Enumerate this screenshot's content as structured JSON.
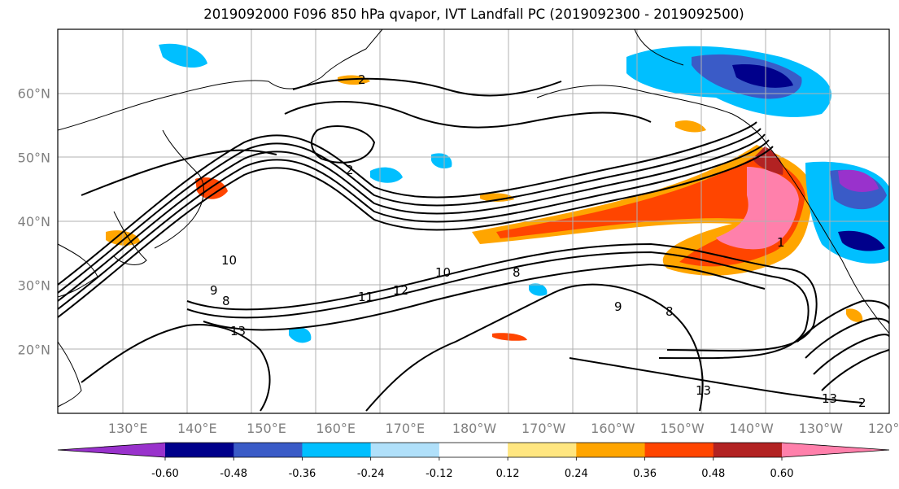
{
  "title": "2019092000 F096 850 hPa qvapor, IVT Landfall PC (2019092300 - 2019092500)",
  "map": {
    "projection": "PlateCarree",
    "lon_range": [
      120,
      240
    ],
    "lat_range": [
      10,
      70
    ],
    "gridlines": true,
    "lat_ticks": [
      {
        "value": 20,
        "label": "20°N"
      },
      {
        "value": 30,
        "label": "30°N"
      },
      {
        "value": 40,
        "label": "40°N"
      },
      {
        "value": 50,
        "label": "50°N"
      },
      {
        "value": 60,
        "label": "60°N"
      }
    ],
    "lon_ticks": [
      {
        "value": 130,
        "label": "130°E"
      },
      {
        "value": 140,
        "label": "140°E"
      },
      {
        "value": 150,
        "label": "150°E"
      },
      {
        "value": 160,
        "label": "160°E"
      },
      {
        "value": 170,
        "label": "170°E"
      },
      {
        "value": 180,
        "label": "180°W"
      },
      {
        "value": 190,
        "label": "170°W"
      },
      {
        "value": 200,
        "label": "160°W"
      },
      {
        "value": 210,
        "label": "150°W"
      },
      {
        "value": 220,
        "label": "140°W"
      },
      {
        "value": 230,
        "label": "130°W"
      },
      {
        "value": 240,
        "label": "120°W"
      }
    ],
    "contour_labels": [
      "2",
      "2",
      "10",
      "9",
      "8",
      "13",
      "11",
      "12",
      "10",
      "8",
      "9",
      "8",
      "13",
      "13",
      "2",
      "1"
    ]
  },
  "colorbar": {
    "colors": [
      "#9932cc",
      "#00008b",
      "#3a5bc7",
      "#00bfff",
      "#b0e0fa",
      "#ffffff",
      "#ffe680",
      "#ffa500",
      "#ff4500",
      "#b22222",
      "#ff80ab"
    ],
    "extend": "both",
    "ticks": [
      "-0.60",
      "-0.48",
      "-0.36",
      "-0.24",
      "-0.12",
      "0.12",
      "0.24",
      "0.36",
      "0.48",
      "0.60"
    ]
  }
}
